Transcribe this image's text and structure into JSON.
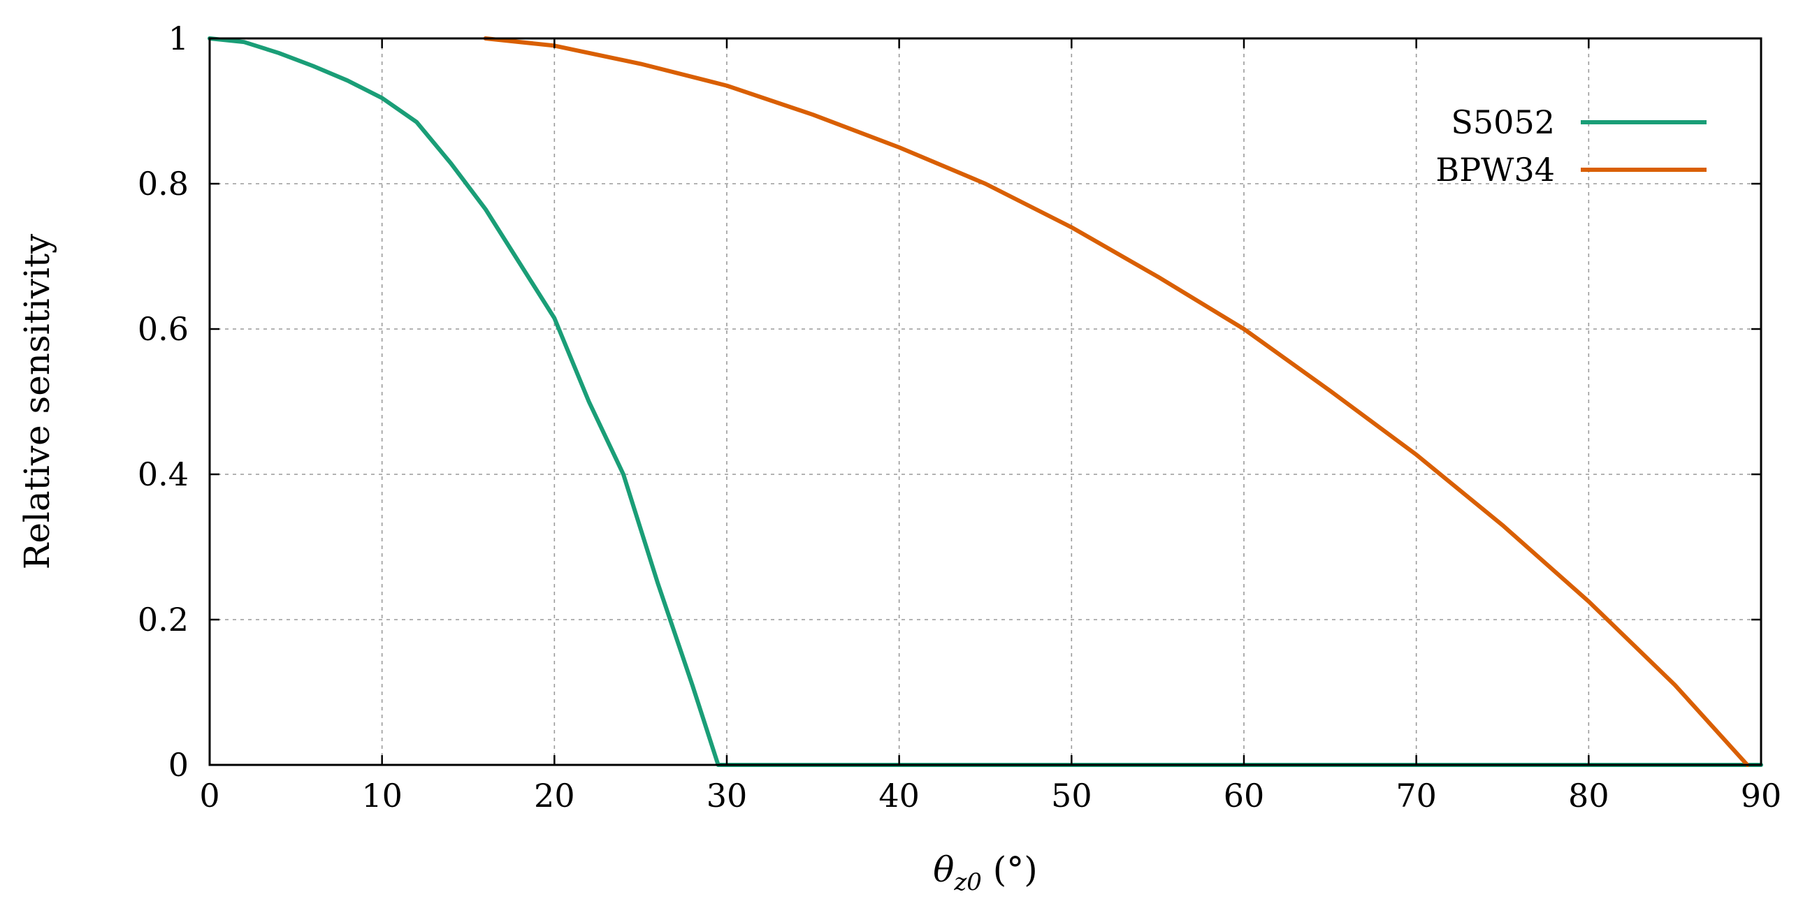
{
  "chart_data": {
    "type": "line",
    "title": "",
    "xlabel_symbol": "θ",
    "xlabel_subscript": "z0",
    "xlabel_unit": " (°)",
    "ylabel": "Relative sensitivity",
    "xlim": [
      0,
      90
    ],
    "ylim": [
      0,
      1
    ],
    "xticks": [
      0,
      10,
      20,
      30,
      40,
      50,
      60,
      70,
      80,
      90
    ],
    "yticks": [
      0,
      0.2,
      0.4,
      0.6,
      0.8,
      1
    ],
    "xtick_labels": [
      "0",
      "10",
      "20",
      "30",
      "40",
      "50",
      "60",
      "70",
      "80",
      "90"
    ],
    "ytick_labels": [
      "0",
      "0.2",
      "0.4",
      "0.6",
      "0.8",
      "1"
    ],
    "grid": true,
    "legend_position": "top-right",
    "series": [
      {
        "name": "S5052",
        "color": "#1a9e77",
        "x": [
          0,
          2,
          4,
          6,
          8,
          10,
          12,
          14,
          16,
          18,
          20,
          22,
          24,
          26,
          28,
          29.5,
          30,
          40,
          50,
          60,
          70,
          80,
          90
        ],
        "y": [
          1.0,
          0.995,
          0.98,
          0.962,
          0.942,
          0.918,
          0.885,
          0.828,
          0.765,
          0.69,
          0.615,
          0.5,
          0.4,
          0.25,
          0.11,
          0.0,
          0.0,
          0.0,
          0.0,
          0.0,
          0.0,
          0.0,
          0.0
        ]
      },
      {
        "name": "BPW34",
        "color": "#d95f02",
        "x": [
          16,
          20,
          25,
          30,
          35,
          40,
          45,
          50,
          55,
          60,
          65,
          70,
          75,
          80,
          85,
          89.2
        ],
        "y": [
          1.0,
          0.99,
          0.965,
          0.935,
          0.895,
          0.85,
          0.8,
          0.74,
          0.672,
          0.6,
          0.515,
          0.427,
          0.33,
          0.225,
          0.11,
          0.0
        ]
      }
    ]
  }
}
